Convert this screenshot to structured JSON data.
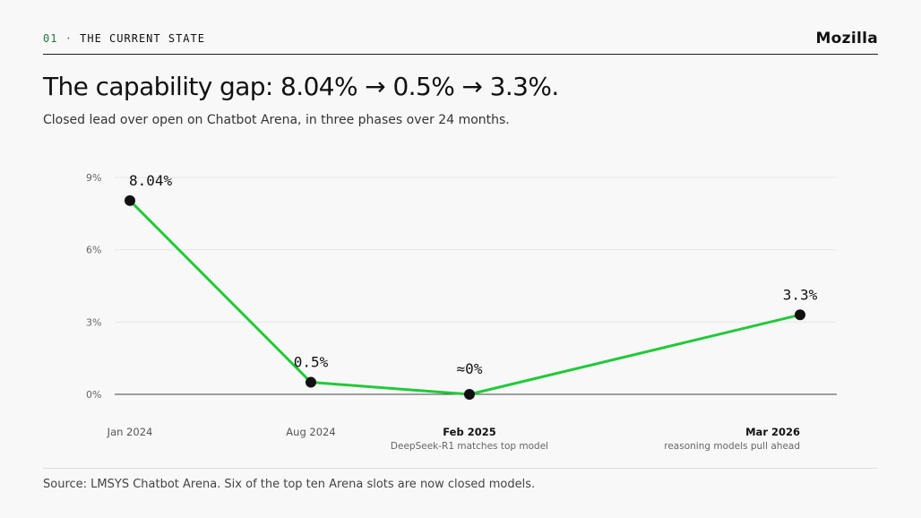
{
  "header": {
    "section_number": "01",
    "separator": "·",
    "section_title": "THE CURRENT STATE",
    "brand": "Mozilla"
  },
  "title": "The capability gap: 8.04% → 0.5% → 3.3%.",
  "subtitle": "Closed lead over open on Chatbot Arena, in three phases over 24 months.",
  "colors": {
    "line": "#22c93a",
    "point": "#111111",
    "grid": "#e6e6e6",
    "baseline": "#444444",
    "section_accent": "#1f7a3a"
  },
  "chart_data": {
    "type": "line",
    "x": [
      "Jan 2024",
      "Aug 2024",
      "Feb 2025",
      "Mar 2026"
    ],
    "series": [
      {
        "values": [
          8.04,
          0.5,
          0,
          3.3
        ]
      }
    ],
    "data_labels": [
      "8.04%",
      "0.5%",
      "≈0%",
      "3.3%"
    ],
    "x_annotations": [
      "",
      "",
      "DeepSeek-R1 matches top model",
      "reasoning models pull ahead"
    ],
    "x_emphasis": [
      false,
      false,
      true,
      true
    ],
    "y_ticks": [
      0,
      3,
      6,
      9
    ],
    "y_tick_labels": [
      "0%",
      "3%",
      "6%",
      "9%"
    ],
    "ylim": [
      0,
      9
    ],
    "xlabel": "",
    "ylabel": "",
    "grid": true
  },
  "source": "Source: LMSYS Chatbot Arena. Six of the top ten Arena slots are now closed models."
}
